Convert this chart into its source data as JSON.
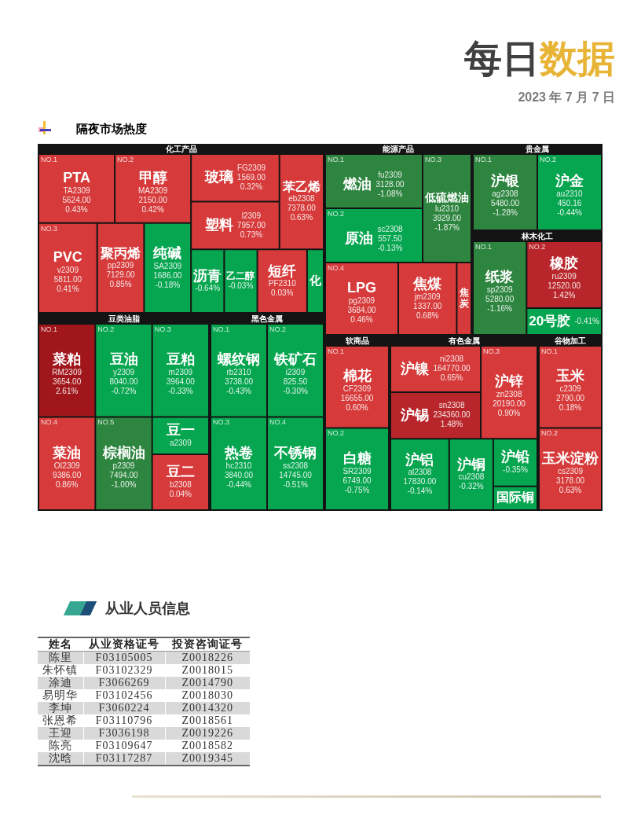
{
  "chart_data": [
    {
      "type": "other",
      "title": "每日数据",
      "subtitle": "2023 年 7 月 7 日"
    },
    {
      "type": "other",
      "title": "隔夜市场热度"
    },
    {
      "type": "other",
      "title": "化工产品",
      "categories": [
        "PTA",
        "甲醇",
        "PVC",
        "聚丙烯",
        "纯碱",
        "玻璃",
        "塑料",
        "苯乙烯",
        "沥青",
        "乙二醇",
        "短纤",
        "化"
      ],
      "values": [
        0.43,
        0.42,
        0.41,
        0.85,
        -0.18,
        0.32,
        0.73,
        0.63,
        -0.64,
        -0.03,
        0.03,
        null
      ],
      "value_labels": [
        "TA2309\n5624.00\n0.43%",
        "MA2309\n2150.00\n0.42%",
        "v2309\n5811.00\n0.41%",
        "pp2309\n7129.00\n0.85%",
        "SA2309\n1686.00\n-0.18%",
        "FG2309\n1569.00\n0.32%",
        "l2309\n7957.00\n0.73%",
        "eb2308\n7378.00\n0.63%",
        "-0.64%",
        "-0.03%",
        "PF2310\n0.03%",
        null
      ],
      "colors": [
        null,
        null,
        null,
        null,
        null,
        null,
        null,
        null,
        null,
        null,
        null,
        "#06a54f"
      ],
      "annotations": [
        {
          "text": "NO.1",
          "x": "PTA"
        },
        {
          "text": "NO.2",
          "x": "甲醇"
        },
        {
          "text": "NO.3",
          "x": "PVC"
        }
      ]
    },
    {
      "type": "other",
      "title": "豆类油脂",
      "categories": [
        "菜粕",
        "豆油",
        "豆粕",
        "菜油",
        "棕榈油",
        "豆一",
        "豆二"
      ],
      "values": [
        2.61,
        -0.72,
        -0.33,
        0.86,
        -1.0,
        null,
        0.04
      ],
      "value_labels": [
        "RM2309\n3654.00\n2.61%",
        "y2309\n8040.00\n-0.72%",
        "m2309\n3964.00\n-0.33%",
        "OI2309\n9386.00\n0.86%",
        "p2309\n7494.00\n-1.00%",
        "a2309",
        "b2308\n0.04%"
      ],
      "colors": [
        null,
        null,
        null,
        null,
        null,
        "#06a54f",
        null
      ],
      "annotations": [
        {
          "text": "NO.1",
          "x": "菜粕"
        },
        {
          "text": "NO.2",
          "x": "豆油"
        },
        {
          "text": "NO.3",
          "x": "豆粕"
        },
        {
          "text": "NO.4",
          "x": "菜油"
        },
        {
          "text": "NO.5",
          "x": "棕榈油"
        }
      ]
    },
    {
      "type": "other",
      "title": "黑色金属",
      "categories": [
        "螺纹钢",
        "铁矿石",
        "热卷",
        "不锈钢"
      ],
      "values": [
        -0.43,
        -0.3,
        -0.44,
        -0.51
      ],
      "value_labels": [
        "rb2310\n3738.00\n-0.43%",
        "i2309\n825.50\n-0.30%",
        "hc2310\n3840.00\n-0.44%",
        "ss2308\n14745.00\n-0.51%"
      ],
      "annotations": [
        {
          "text": "NO.1",
          "x": "螺纹钢"
        },
        {
          "text": "NO.2",
          "x": "铁矿石"
        },
        {
          "text": "NO.3",
          "x": "热卷"
        },
        {
          "text": "NO.4",
          "x": "不锈钢"
        }
      ]
    },
    {
      "type": "other",
      "title": "能源产品",
      "categories": [
        "燃油",
        "原油",
        "低硫燃油",
        "LPG",
        "焦煤",
        "焦炭"
      ],
      "values": [
        -1.08,
        -0.13,
        -1.87,
        0.46,
        0.68,
        null
      ],
      "value_labels": [
        "fu2309\n3128.00\n-1.08%",
        "sc2308\n557.50\n-0.13%",
        "lu2310\n3929.00\n-1.87%",
        "pg2309\n3684.00\n0.46%",
        "jm2309\n1337.00\n0.68%",
        null
      ],
      "colors": [
        null,
        null,
        null,
        null,
        null,
        "#d63a3a"
      ],
      "annotations": [
        {
          "text": "NO.1",
          "x": "燃油"
        },
        {
          "text": "NO.2",
          "x": "原油"
        },
        {
          "text": "NO.3",
          "x": "低硫燃油"
        },
        {
          "text": "NO.4",
          "x": "LPG"
        }
      ]
    },
    {
      "type": "other",
      "title": "贵金属",
      "categories": [
        "沪银",
        "沪金"
      ],
      "values": [
        -1.28,
        -0.44
      ],
      "value_labels": [
        "ag2308\n5480.00\n-1.28%",
        "au2310\n450.16\n-0.44%"
      ],
      "annotations": [
        {
          "text": "NO.1",
          "x": "沪银"
        },
        {
          "text": "NO.2",
          "x": "沪金"
        }
      ]
    },
    {
      "type": "other",
      "title": "林木化工",
      "categories": [
        "纸浆",
        "橡胶",
        "20号胶"
      ],
      "values": [
        -1.16,
        1.42,
        -0.41
      ],
      "value_labels": [
        "sp2309\n5280.00\n-1.16%",
        "ru2309\n12520.00\n1.42%",
        "-0.41%"
      ],
      "annotations": [
        {
          "text": "NO.1",
          "x": "纸浆"
        },
        {
          "text": "NO.2",
          "x": "橡胶"
        }
      ]
    },
    {
      "type": "other",
      "title": "软商品",
      "categories": [
        "棉花",
        "白糖"
      ],
      "values": [
        0.6,
        -0.75
      ],
      "value_labels": [
        "CF2309\n16655.00\n0.60%",
        "SR2309\n6749.00\n-0.75%"
      ],
      "annotations": [
        {
          "text": "NO.1",
          "x": "棉花"
        },
        {
          "text": "NO.2",
          "x": "白糖"
        }
      ]
    },
    {
      "type": "other",
      "title": "有色金属",
      "categories": [
        "沪镍",
        "沪锡",
        "沪锌",
        "沪铝",
        "沪铜",
        "沪铅",
        "国际铜"
      ],
      "values": [
        0.65,
        1.48,
        0.9,
        -0.14,
        -0.32,
        -0.35,
        null
      ],
      "value_labels": [
        "ni2308\n164770.00\n0.65%",
        "sn2308\n234360.00\n1.48%",
        "zn2308\n20190.00\n0.90%",
        "al2308\n17830.00\n-0.14%",
        "cu2308\n-0.32%",
        "-0.35%",
        null
      ],
      "colors": [
        null,
        null,
        null,
        null,
        null,
        null,
        "#06a54f"
      ],
      "annotations": [
        {
          "text": "NO.3",
          "x": "沪锌"
        }
      ]
    },
    {
      "type": "other",
      "title": "谷物加工",
      "categories": [
        "玉米",
        "玉米淀粉"
      ],
      "values": [
        0.18,
        0.63
      ],
      "value_labels": [
        "c2309\n2790.00\n0.18%",
        "cs2309\n3178.00\n0.63%"
      ],
      "annotations": [
        {
          "text": "NO.1",
          "x": "玉米"
        },
        {
          "text": "NO.2",
          "x": "玉米淀粉"
        }
      ]
    },
    {
      "type": "other",
      "title": "从业人员信息",
      "categories": [
        "姓名",
        "从业资格证号",
        "投资咨询证号"
      ],
      "cell_labels": [
        [
          "陈里",
          "F03105005",
          "Z0018226"
        ],
        [
          "朱怀镇",
          "F03102329",
          "Z0018015"
        ],
        [
          "涂迪",
          "F3066269",
          "Z0014790"
        ],
        [
          "易明华",
          "F03102456",
          "Z0018030"
        ],
        [
          "李坤",
          "F3060224",
          "Z0014320"
        ],
        [
          "张恩希",
          "F03110796",
          "Z0018561"
        ],
        [
          "王迎",
          "F3036198",
          "Z0019226"
        ],
        [
          "陈亮",
          "F03109647",
          "Z0018582"
        ],
        [
          "沈晗",
          "F03117287",
          "Z0019345"
        ]
      ]
    }
  ]
}
